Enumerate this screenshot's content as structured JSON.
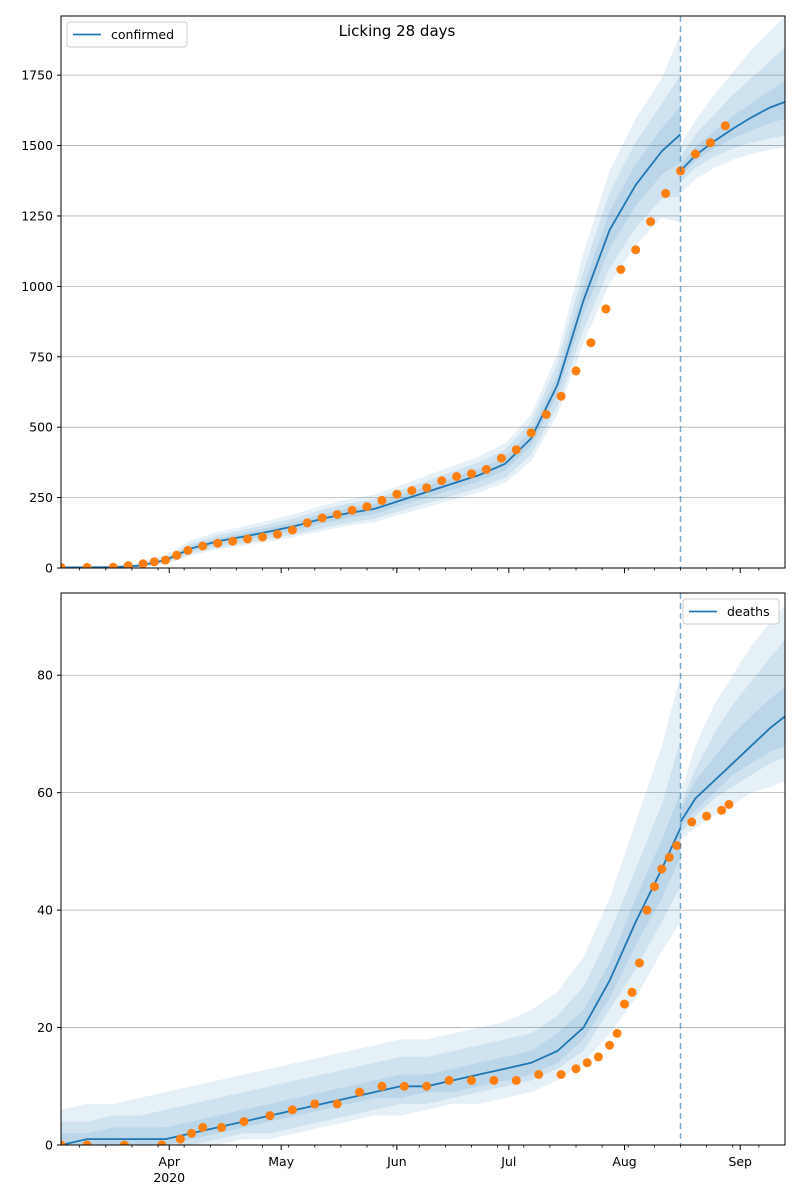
{
  "figure": {
    "title": "Licking 28 days"
  },
  "chart_data": [
    {
      "type": "line",
      "name": "confirmed-panel",
      "title": "Licking 28 days",
      "legend": {
        "label": "confirmed",
        "placement": "top-left"
      },
      "grid": "horizontal",
      "xlim": [
        "2020-03-03",
        "2020-09-13"
      ],
      "ylim": [
        0,
        1960
      ],
      "yticks": [
        0,
        250,
        500,
        750,
        1000,
        1250,
        1500,
        1750
      ],
      "forecast_start": "2020-08-16",
      "colors": {
        "model": "#1f77b4",
        "observed": "#ff7f0e",
        "band": "#1f77b4"
      },
      "model": {
        "x": [
          "2020-03-03",
          "2020-03-10",
          "2020-03-17",
          "2020-03-24",
          "2020-03-31",
          "2020-04-07",
          "2020-04-14",
          "2020-04-21",
          "2020-04-28",
          "2020-05-05",
          "2020-05-12",
          "2020-05-19",
          "2020-05-26",
          "2020-06-02",
          "2020-06-09",
          "2020-06-16",
          "2020-06-23",
          "2020-06-30",
          "2020-07-07",
          "2020-07-14",
          "2020-07-21",
          "2020-07-28",
          "2020-08-04",
          "2020-08-11",
          "2020-08-16"
        ],
        "y": [
          2,
          2,
          3,
          8,
          28,
          70,
          95,
          112,
          130,
          150,
          175,
          195,
          210,
          240,
          270,
          300,
          330,
          370,
          460,
          650,
          950,
          1200,
          1360,
          1480,
          1540
        ]
      },
      "model_bands": [
        {
          "lower": [
            0,
            0,
            0,
            2,
            14,
            45,
            66,
            80,
            94,
            111,
            132,
            150,
            163,
            190,
            216,
            242,
            268,
            302,
            380,
            545,
            800,
            1010,
            1145,
            1245,
            1225
          ],
          "upper": [
            6,
            7,
            9,
            18,
            45,
            100,
            128,
            148,
            170,
            193,
            222,
            244,
            261,
            294,
            328,
            362,
            396,
            442,
            545,
            760,
            1120,
            1410,
            1595,
            1740,
            1895
          ]
        },
        {
          "lower": [
            0,
            0,
            1,
            4,
            18,
            52,
            74,
            88,
            104,
            121,
            143,
            161,
            175,
            203,
            230,
            257,
            284,
            320,
            402,
            575,
            845,
            1065,
            1208,
            1312,
            1320
          ],
          "upper": [
            5,
            5,
            6,
            14,
            38,
            88,
            116,
            136,
            156,
            179,
            207,
            229,
            245,
            277,
            310,
            343,
            376,
            420,
            518,
            725,
            1055,
            1335,
            1512,
            1648,
            1750
          ]
        },
        {
          "lower": [
            1,
            1,
            2,
            6,
            23,
            61,
            84,
            100,
            116,
            135,
            159,
            178,
            192,
            221,
            250,
            279,
            308,
            346,
            433,
            615,
            900,
            1135,
            1285,
            1398,
            1440
          ],
          "upper": [
            3,
            3,
            4,
            10,
            33,
            79,
            106,
            124,
            144,
            165,
            191,
            212,
            228,
            259,
            290,
            321,
            352,
            394,
            487,
            685,
            1000,
            1265,
            1435,
            1562,
            1640
          ]
        }
      ],
      "forecast": {
        "x": [
          "2020-08-16",
          "2020-08-20",
          "2020-08-25",
          "2020-08-30",
          "2020-09-04",
          "2020-09-09",
          "2020-09-13"
        ],
        "y": [
          1410,
          1465,
          1515,
          1560,
          1600,
          1635,
          1655
        ]
      },
      "forecast_bands": [
        {
          "lower": [
            1330,
            1380,
            1420,
            1450,
            1470,
            1485,
            1495
          ],
          "upper": [
            1500,
            1590,
            1680,
            1760,
            1840,
            1905,
            1960
          ]
        },
        {
          "lower": [
            1370,
            1420,
            1460,
            1490,
            1510,
            1525,
            1535
          ],
          "upper": [
            1460,
            1540,
            1610,
            1680,
            1740,
            1800,
            1850
          ]
        },
        {
          "lower": [
            1395,
            1445,
            1490,
            1525,
            1555,
            1580,
            1595
          ],
          "upper": [
            1430,
            1495,
            1550,
            1605,
            1650,
            1695,
            1730
          ]
        }
      ],
      "observed": {
        "x": [
          "2020-03-03",
          "2020-03-10",
          "2020-03-17",
          "2020-03-21",
          "2020-03-25",
          "2020-03-28",
          "2020-03-31",
          "2020-04-03",
          "2020-04-06",
          "2020-04-10",
          "2020-04-14",
          "2020-04-18",
          "2020-04-22",
          "2020-04-26",
          "2020-04-30",
          "2020-05-04",
          "2020-05-08",
          "2020-05-12",
          "2020-05-16",
          "2020-05-20",
          "2020-05-24",
          "2020-05-28",
          "2020-06-01",
          "2020-06-05",
          "2020-06-09",
          "2020-06-13",
          "2020-06-17",
          "2020-06-21",
          "2020-06-25",
          "2020-06-29",
          "2020-07-03",
          "2020-07-07",
          "2020-07-11",
          "2020-07-15",
          "2020-07-19",
          "2020-07-23",
          "2020-07-27",
          "2020-07-31",
          "2020-08-04",
          "2020-08-08",
          "2020-08-12",
          "2020-08-16",
          "2020-08-20",
          "2020-08-24",
          "2020-08-28"
        ],
        "y": [
          2,
          2,
          3,
          8,
          15,
          22,
          28,
          45,
          62,
          78,
          88,
          95,
          103,
          110,
          120,
          135,
          160,
          178,
          190,
          205,
          218,
          240,
          262,
          275,
          285,
          310,
          325,
          335,
          350,
          390,
          420,
          480,
          545,
          610,
          700,
          800,
          920,
          1060,
          1130,
          1230,
          1330,
          1410,
          1470,
          1510,
          1570
        ]
      }
    },
    {
      "type": "line",
      "name": "deaths-panel",
      "legend": {
        "label": "deaths",
        "placement": "top-right"
      },
      "grid": "horizontal",
      "xlim": [
        "2020-03-03",
        "2020-09-13"
      ],
      "ylim": [
        0,
        94
      ],
      "yticks": [
        0,
        20,
        40,
        60,
        80
      ],
      "xticks": [
        "Apr",
        "May",
        "Jun",
        "Jul",
        "Aug",
        "Sep"
      ],
      "xtick_dates": [
        "2020-04-01",
        "2020-05-01",
        "2020-06-01",
        "2020-07-01",
        "2020-08-01",
        "2020-09-01"
      ],
      "year_label": "2020",
      "forecast_start": "2020-08-16",
      "colors": {
        "model": "#1f77b4",
        "observed": "#ff7f0e",
        "band": "#1f77b4"
      },
      "model": {
        "x": [
          "2020-03-03",
          "2020-03-10",
          "2020-03-17",
          "2020-03-24",
          "2020-03-31",
          "2020-04-07",
          "2020-04-14",
          "2020-04-21",
          "2020-04-28",
          "2020-05-05",
          "2020-05-12",
          "2020-05-19",
          "2020-05-26",
          "2020-06-02",
          "2020-06-09",
          "2020-06-16",
          "2020-06-23",
          "2020-06-30",
          "2020-07-07",
          "2020-07-14",
          "2020-07-21",
          "2020-07-28",
          "2020-08-04",
          "2020-08-11",
          "2020-08-16"
        ],
        "y": [
          0,
          1,
          1,
          1,
          1,
          2,
          3,
          4,
          5,
          6,
          7,
          8,
          9,
          10,
          10,
          11,
          12,
          13,
          14,
          16,
          20,
          28,
          38,
          47,
          54
        ]
      },
      "model_bands": [
        {
          "lower": [
            0,
            0,
            0,
            0,
            0,
            0,
            0,
            1,
            1,
            2,
            3,
            4,
            5,
            5,
            6,
            7,
            7,
            8,
            9,
            11,
            14,
            19,
            25,
            33,
            38
          ],
          "upper": [
            6,
            7,
            7,
            8,
            9,
            10,
            11,
            12,
            13,
            14,
            15,
            16,
            17,
            18,
            18,
            19,
            20,
            21,
            23,
            26,
            32,
            42,
            55,
            68,
            80
          ]
        },
        {
          "lower": [
            0,
            0,
            0,
            0,
            0,
            0,
            1,
            2,
            2,
            3,
            4,
            5,
            6,
            7,
            7,
            8,
            9,
            10,
            11,
            13,
            16,
            23,
            30,
            38,
            44
          ],
          "upper": [
            4,
            4,
            5,
            5,
            6,
            7,
            8,
            9,
            10,
            11,
            12,
            13,
            14,
            15,
            15,
            16,
            17,
            18,
            19,
            22,
            27,
            36,
            47,
            58,
            69
          ]
        },
        {
          "lower": [
            0,
            0,
            0,
            0,
            0,
            1,
            2,
            3,
            4,
            5,
            6,
            7,
            8,
            8,
            9,
            9,
            10,
            11,
            12,
            14,
            18,
            25,
            34,
            42,
            49
          ],
          "upper": [
            2,
            2,
            3,
            3,
            3,
            4,
            5,
            6,
            7,
            8,
            9,
            10,
            11,
            12,
            12,
            13,
            14,
            15,
            16,
            19,
            23,
            31,
            42,
            52,
            60
          ]
        }
      ],
      "forecast": {
        "x": [
          "2020-08-16",
          "2020-08-20",
          "2020-08-25",
          "2020-08-30",
          "2020-09-04",
          "2020-09-09",
          "2020-09-13"
        ],
        "y": [
          55,
          59,
          62,
          65,
          68,
          71,
          73
        ]
      },
      "forecast_bands": [
        {
          "lower": [
            52,
            54,
            56,
            58,
            60,
            61,
            62
          ],
          "upper": [
            60,
            68,
            75,
            80,
            85,
            89,
            92
          ]
        },
        {
          "lower": [
            53,
            56,
            59,
            61,
            63,
            65,
            66
          ],
          "upper": [
            58,
            64,
            70,
            75,
            79,
            83,
            86
          ]
        },
        {
          "lower": [
            54,
            57,
            60,
            63,
            65,
            67,
            68
          ],
          "upper": [
            57,
            62,
            66,
            70,
            73,
            76,
            78
          ]
        }
      ],
      "observed": {
        "x": [
          "2020-03-03",
          "2020-03-10",
          "2020-03-20",
          "2020-03-30",
          "2020-04-04",
          "2020-04-07",
          "2020-04-10",
          "2020-04-15",
          "2020-04-21",
          "2020-04-28",
          "2020-05-04",
          "2020-05-10",
          "2020-05-16",
          "2020-05-22",
          "2020-05-28",
          "2020-06-03",
          "2020-06-09",
          "2020-06-15",
          "2020-06-21",
          "2020-06-27",
          "2020-07-03",
          "2020-07-09",
          "2020-07-15",
          "2020-07-19",
          "2020-07-22",
          "2020-07-25",
          "2020-07-28",
          "2020-07-30",
          "2020-08-01",
          "2020-08-03",
          "2020-08-05",
          "2020-08-07",
          "2020-08-09",
          "2020-08-11",
          "2020-08-13",
          "2020-08-15",
          "2020-08-19",
          "2020-08-23",
          "2020-08-27",
          "2020-08-29"
        ],
        "y": [
          0,
          0,
          0,
          0,
          1,
          2,
          3,
          3,
          4,
          5,
          6,
          7,
          7,
          9,
          10,
          10,
          10,
          11,
          11,
          11,
          11,
          12,
          12,
          13,
          14,
          15,
          17,
          19,
          24,
          26,
          31,
          40,
          44,
          47,
          49,
          51,
          55,
          56,
          57,
          58
        ]
      }
    }
  ]
}
